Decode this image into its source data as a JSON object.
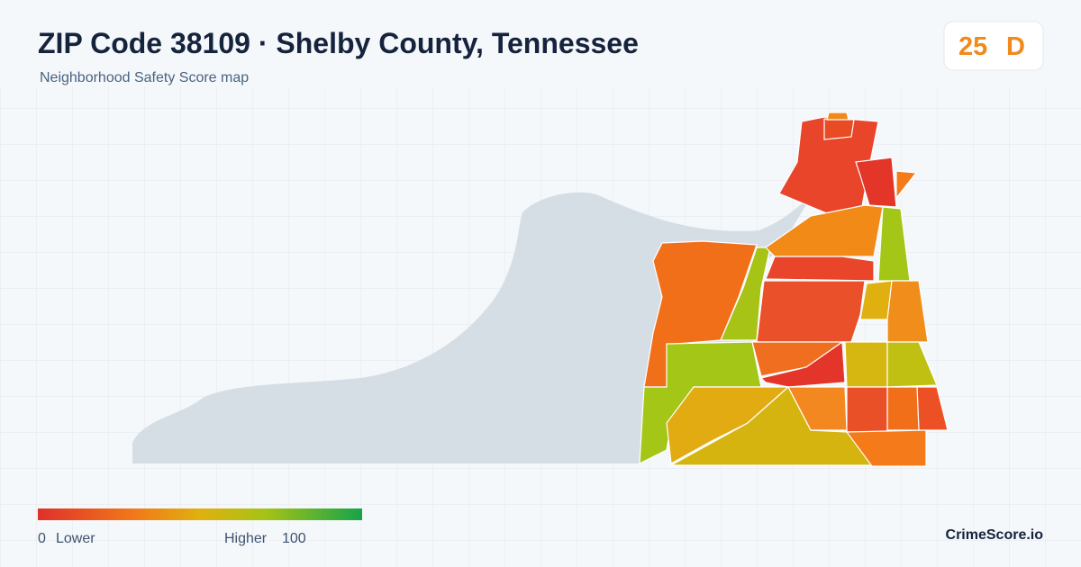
{
  "header": {
    "title": "ZIP Code 38109 · Shelby County, Tennessee",
    "subtitle": "Neighborhood Safety Score map"
  },
  "badge": {
    "score": 25,
    "grade": "D"
  },
  "legend": {
    "min": 0,
    "min_label": "Lower",
    "max_label": "Higher",
    "max": 100
  },
  "footer": {
    "brand": "CrimeScore.io"
  }
}
